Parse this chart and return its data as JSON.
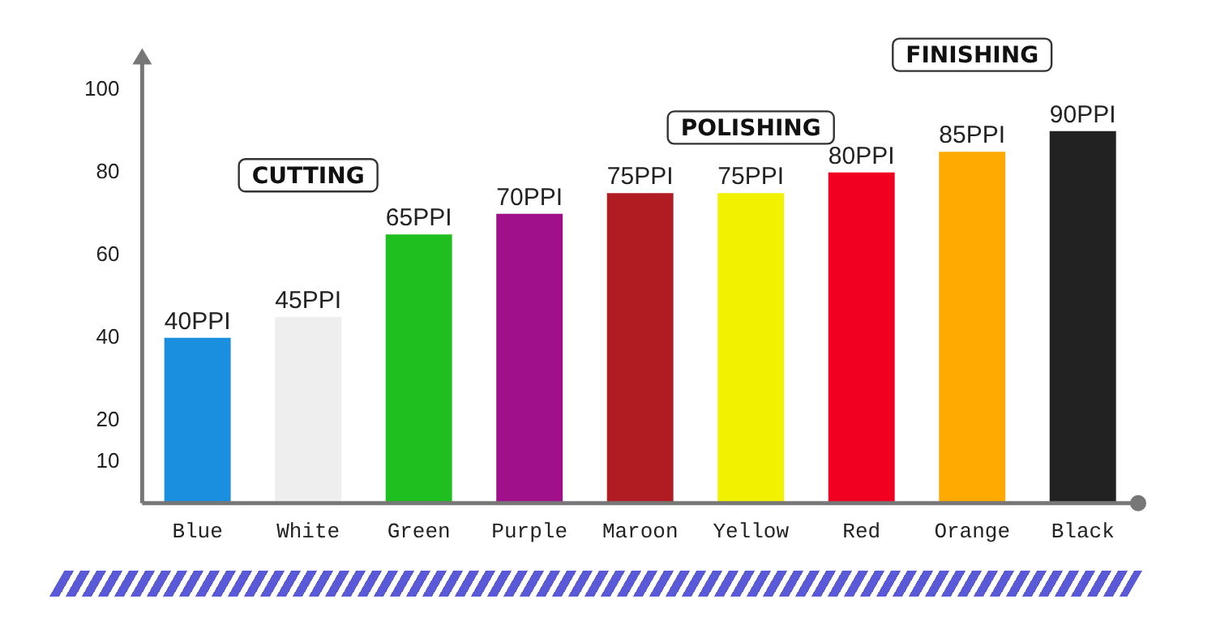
{
  "chart_data": {
    "type": "bar",
    "categories": [
      "Blue",
      "White",
      "Green",
      "Purple",
      "Maroon",
      "Yellow",
      "Red",
      "Orange",
      "Black"
    ],
    "values": [
      40,
      45,
      65,
      70,
      75,
      75,
      80,
      85,
      90
    ],
    "value_labels": [
      "40PPI",
      "45PPI",
      "65PPI",
      "70PPI",
      "75PPI",
      "75PPI",
      "80PPI",
      "85PPI",
      "90PPI"
    ],
    "colors": [
      "#1a8fe0",
      "#eeeeee",
      "#1fbf1f",
      "#a0108a",
      "#b01c22",
      "#f2f200",
      "#f20022",
      "#ffaa00",
      "#222222"
    ],
    "ylim": [
      0,
      110
    ],
    "yticks": [
      10,
      20,
      40,
      60,
      80,
      100
    ],
    "grid": false,
    "legend": false,
    "annotations": [
      "CUTTING",
      "POLISHING",
      "FINISHING"
    ]
  }
}
